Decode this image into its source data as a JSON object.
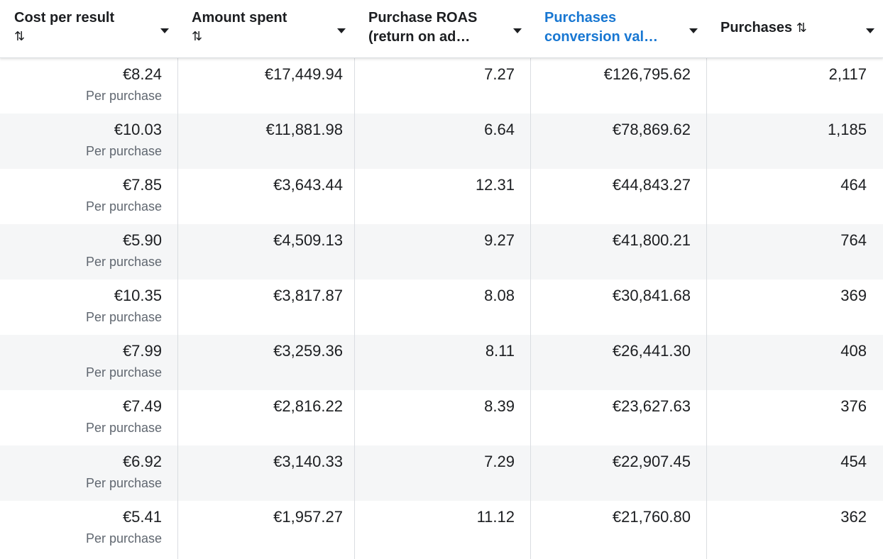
{
  "columns": [
    {
      "label": "Cost per result",
      "sortable": true,
      "active": false
    },
    {
      "label": "Amount spent",
      "sortable": true,
      "active": false
    },
    {
      "label_line1": "Purchase ROAS",
      "label_line2": "(return on ad…",
      "active": false
    },
    {
      "label_line1": "Purchases",
      "label_line2": "conversion val…",
      "active": true,
      "active_color": "#1877d2"
    },
    {
      "label": "Purchases",
      "sortable": true,
      "active": false
    }
  ],
  "sort_icon": "sort-up-down-icon",
  "dropdown_icon": "caret-down-icon",
  "result_type_label": "Per purchase",
  "rows": [
    {
      "cost_per_result": "€8.24",
      "amount_spent": "€17,449.94",
      "roas": "7.27",
      "conversion_value": "€126,795.62",
      "purchases": "2,117"
    },
    {
      "cost_per_result": "€10.03",
      "amount_spent": "€11,881.98",
      "roas": "6.64",
      "conversion_value": "€78,869.62",
      "purchases": "1,185"
    },
    {
      "cost_per_result": "€7.85",
      "amount_spent": "€3,643.44",
      "roas": "12.31",
      "conversion_value": "€44,843.27",
      "purchases": "464"
    },
    {
      "cost_per_result": "€5.90",
      "amount_spent": "€4,509.13",
      "roas": "9.27",
      "conversion_value": "€41,800.21",
      "purchases": "764"
    },
    {
      "cost_per_result": "€10.35",
      "amount_spent": "€3,817.87",
      "roas": "8.08",
      "conversion_value": "€30,841.68",
      "purchases": "369"
    },
    {
      "cost_per_result": "€7.99",
      "amount_spent": "€3,259.36",
      "roas": "8.11",
      "conversion_value": "€26,441.30",
      "purchases": "408"
    },
    {
      "cost_per_result": "€7.49",
      "amount_spent": "€2,816.22",
      "roas": "8.39",
      "conversion_value": "€23,627.63",
      "purchases": "376"
    },
    {
      "cost_per_result": "€6.92",
      "amount_spent": "€3,140.33",
      "roas": "7.29",
      "conversion_value": "€22,907.45",
      "purchases": "454"
    },
    {
      "cost_per_result": "€5.41",
      "amount_spent": "€1,957.27",
      "roas": "11.12",
      "conversion_value": "€21,760.80",
      "purchases": "362"
    }
  ]
}
